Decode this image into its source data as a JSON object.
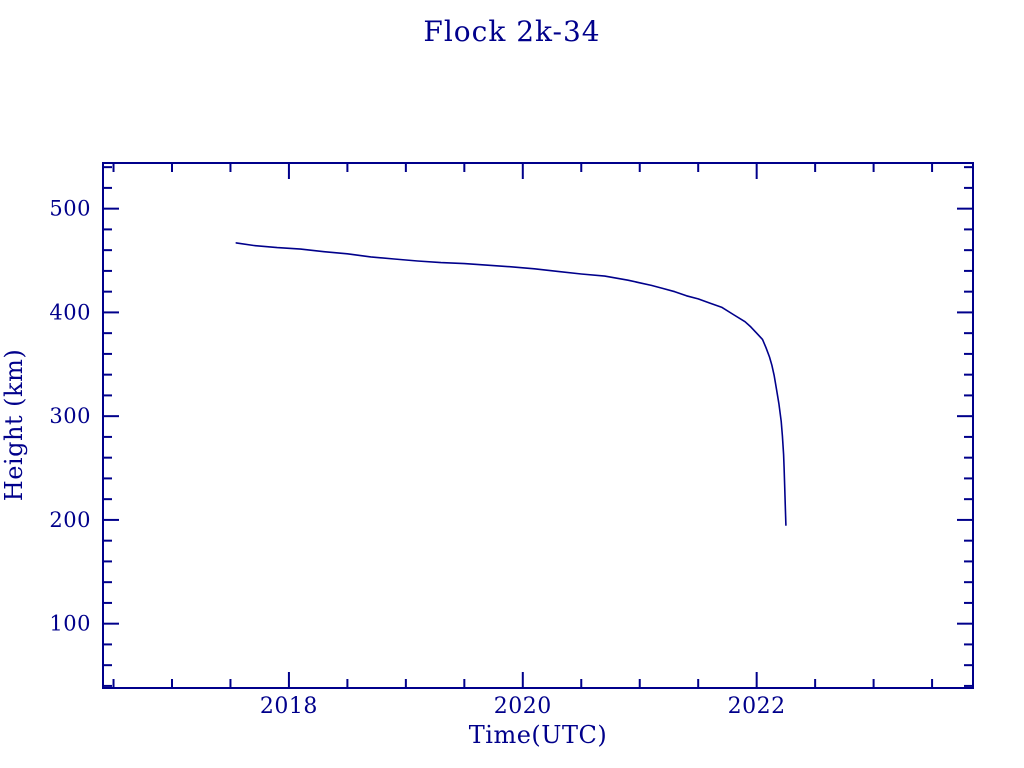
{
  "colors": {
    "ink": "#00008b",
    "background": "#ffffff"
  },
  "chart_data": {
    "type": "line",
    "title": "Flock 2k-34",
    "xlabel": "Time(UTC)",
    "ylabel": "Height (km)",
    "grid": false,
    "legend": "none",
    "line_color": "#00008b",
    "xlim": [
      2016.41,
      2023.85
    ],
    "ylim": [
      38,
      544
    ],
    "x_major_ticks": [
      2018,
      2020,
      2022
    ],
    "x_major_labels": [
      "2018",
      "2020",
      "2022"
    ],
    "x_minor_step": 0.5,
    "y_major_ticks": [
      100,
      200,
      300,
      400,
      500
    ],
    "y_major_labels": [
      "100",
      "200",
      "300",
      "400",
      "500"
    ],
    "y_minor_step": 20,
    "series": [
      {
        "name": "Flock 2k-34 orbital height",
        "x_unit": "decimal year",
        "y_unit": "km",
        "points": [
          [
            2017.55,
            467.0
          ],
          [
            2017.7,
            464.5
          ],
          [
            2017.9,
            462.5
          ],
          [
            2018.1,
            461.0
          ],
          [
            2018.3,
            458.5
          ],
          [
            2018.5,
            456.5
          ],
          [
            2018.7,
            453.5
          ],
          [
            2018.9,
            451.5
          ],
          [
            2019.1,
            449.5
          ],
          [
            2019.3,
            448.0
          ],
          [
            2019.5,
            447.0
          ],
          [
            2019.7,
            445.5
          ],
          [
            2019.9,
            444.0
          ],
          [
            2020.1,
            442.0
          ],
          [
            2020.3,
            439.5
          ],
          [
            2020.5,
            437.0
          ],
          [
            2020.7,
            435.0
          ],
          [
            2020.9,
            431.0
          ],
          [
            2021.0,
            428.5
          ],
          [
            2021.1,
            426.0
          ],
          [
            2021.2,
            423.0
          ],
          [
            2021.3,
            420.0
          ],
          [
            2021.4,
            416.0
          ],
          [
            2021.5,
            413.0
          ],
          [
            2021.6,
            409.0
          ],
          [
            2021.7,
            405.0
          ],
          [
            2021.8,
            398.0
          ],
          [
            2021.9,
            391.0
          ],
          [
            2021.95,
            386.0
          ],
          [
            2022.0,
            380.0
          ],
          [
            2022.05,
            374.0
          ],
          [
            2022.08,
            366.0
          ],
          [
            2022.11,
            357.0
          ],
          [
            2022.13,
            349.0
          ],
          [
            2022.15,
            339.0
          ],
          [
            2022.17,
            326.0
          ],
          [
            2022.19,
            312.0
          ],
          [
            2022.21,
            295.0
          ],
          [
            2022.22,
            281.0
          ],
          [
            2022.23,
            263.0
          ],
          [
            2022.235,
            250.0
          ],
          [
            2022.24,
            232.0
          ],
          [
            2022.245,
            213.0
          ],
          [
            2022.25,
            195.0
          ]
        ]
      }
    ]
  }
}
